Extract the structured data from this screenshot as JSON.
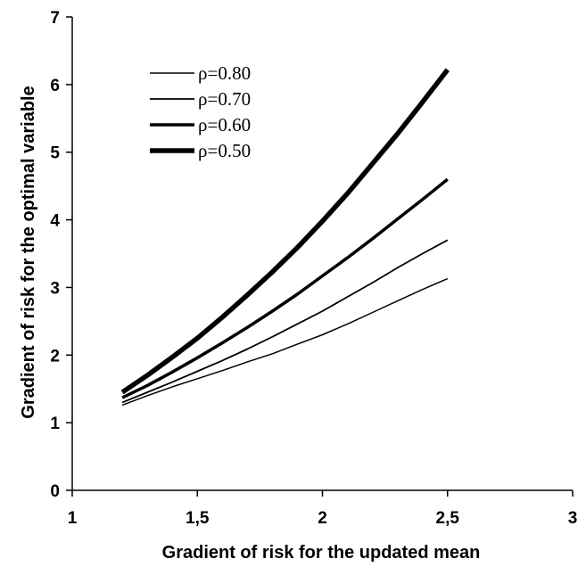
{
  "chart_data": {
    "type": "line",
    "title": "",
    "xlabel": "Gradient of risk for the updated mean",
    "ylabel": "Gradient of risk for the optimal variable",
    "xlim": [
      1,
      3
    ],
    "ylim": [
      0,
      7
    ],
    "x_ticks": [
      "1",
      "1,5",
      "2",
      "2,5",
      "3"
    ],
    "x_tick_values": [
      1,
      1.5,
      2,
      2.5,
      3
    ],
    "y_ticks": [
      "0",
      "1",
      "2",
      "3",
      "4",
      "5",
      "6",
      "7"
    ],
    "y_tick_values": [
      0,
      1,
      2,
      3,
      4,
      5,
      6,
      7
    ],
    "grid": false,
    "legend_position": "top-left",
    "x": [
      1.2,
      1.3,
      1.4,
      1.5,
      1.6,
      1.7,
      1.8,
      1.9,
      2.0,
      2.1,
      2.2,
      2.3,
      2.4,
      2.5
    ],
    "series": [
      {
        "name": "ρ=0.80",
        "line_width": 1.5,
        "color": "#000000",
        "values": [
          1.26,
          1.4,
          1.53,
          1.65,
          1.77,
          1.9,
          2.02,
          2.16,
          2.3,
          2.46,
          2.63,
          2.8,
          2.97,
          3.13
        ]
      },
      {
        "name": "ρ=0.70",
        "line_width": 1.8,
        "color": "#000000",
        "values": [
          1.3,
          1.45,
          1.6,
          1.76,
          1.92,
          2.09,
          2.27,
          2.46,
          2.65,
          2.86,
          3.07,
          3.29,
          3.5,
          3.7
        ]
      },
      {
        "name": "ρ=0.60",
        "line_width": 3.5,
        "color": "#000000",
        "values": [
          1.37,
          1.55,
          1.75,
          1.96,
          2.18,
          2.41,
          2.65,
          2.9,
          3.17,
          3.44,
          3.72,
          4.01,
          4.3,
          4.6
        ]
      },
      {
        "name": "ρ=0.50",
        "line_width": 5.5,
        "color": "#000000",
        "values": [
          1.45,
          1.7,
          1.97,
          2.25,
          2.56,
          2.89,
          3.23,
          3.59,
          3.98,
          4.39,
          4.83,
          5.27,
          5.74,
          6.22
        ]
      }
    ]
  }
}
